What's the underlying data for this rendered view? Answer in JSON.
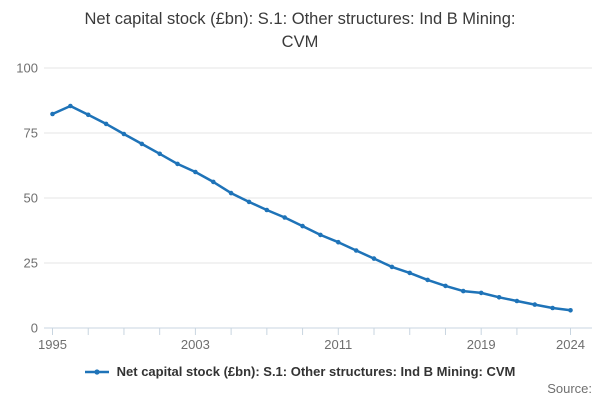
{
  "header": {
    "title_line1": "Net capital stock (£bn): S.1: Other structures: Ind B Mining:",
    "title_line2": "CVM"
  },
  "legend": {
    "label": "Net capital stock (£bn): S.1: Other structures: Ind B Mining: CVM"
  },
  "footer": {
    "source_label": "Source:"
  },
  "colors": {
    "series": "#1e73b8",
    "grid": "#e6e6e6",
    "axis": "#c8d5e0",
    "tick_label": "#6f6f6f",
    "title_text": "#3a3a3a",
    "source_text": "#707070"
  },
  "chart_data": {
    "type": "line",
    "title": "Net capital stock (£bn): S.1: Other structures: Ind B Mining: CVM",
    "xlabel": "",
    "ylabel": "",
    "x": [
      1995,
      1996,
      1997,
      1998,
      1999,
      2000,
      2001,
      2002,
      2003,
      2004,
      2005,
      2006,
      2007,
      2008,
      2009,
      2010,
      2011,
      2012,
      2013,
      2014,
      2015,
      2016,
      2017,
      2018,
      2019,
      2020,
      2021,
      2022,
      2023,
      2024
    ],
    "series": [
      {
        "name": "Net capital stock (£bn): S.1: Other structures: Ind B Mining: CVM",
        "values": [
          82.3,
          85.4,
          82.0,
          78.5,
          74.6,
          70.8,
          67.0,
          63.1,
          60.0,
          56.2,
          51.9,
          48.5,
          45.4,
          42.5,
          39.2,
          35.8,
          33.0,
          29.8,
          26.7,
          23.5,
          21.2,
          18.5,
          16.2,
          14.2,
          13.5,
          11.8,
          10.4,
          9.0,
          7.7,
          6.8
        ]
      }
    ],
    "xlim": [
      1995,
      2024
    ],
    "ylim": [
      0,
      100
    ],
    "yticks": [
      0,
      25,
      50,
      75,
      100
    ],
    "xticks": [
      1995,
      1997,
      1999,
      2001,
      2003,
      2005,
      2007,
      2009,
      2011,
      2013,
      2015,
      2017,
      2019,
      2021,
      2024
    ],
    "xtick_labels_shown": [
      1995,
      2003,
      2011,
      2019,
      2024
    ],
    "grid": "horizontal",
    "legend_position": "bottom",
    "markers": true
  }
}
